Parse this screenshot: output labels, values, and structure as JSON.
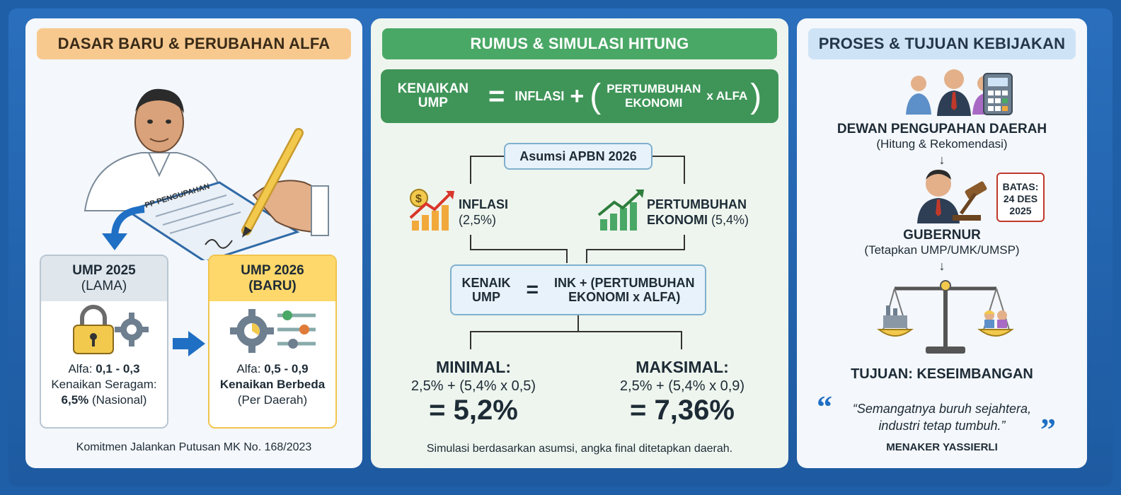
{
  "panel1": {
    "title": "DASAR BARU & PERUBAHAN ALFA",
    "document_label": "PP PENGUPAHAN",
    "old_card": {
      "title": "UMP 2025",
      "subtitle": "(LAMA)",
      "alfa_label": "Alfa: ",
      "alfa_value": "0,1 - 0,3",
      "increase_label": "Kenaikan Seragam:",
      "increase_value": "6,5%",
      "increase_note": " (Nasional)"
    },
    "new_card": {
      "title": "UMP 2026",
      "subtitle": "(BARU)",
      "alfa_label": "Alfa: ",
      "alfa_value": "0,5 - 0,9",
      "increase_label": "Kenaikan Berbeda",
      "increase_note": "(Per Daerah)"
    },
    "footer": "Komitmen Jalankan Putusan MK No. 168/2023"
  },
  "panel2": {
    "title": "RUMUS & SIMULASI HITUNG",
    "formula": {
      "lhs_line1": "KENAIKAN",
      "lhs_line2": "UMP",
      "equals": "=",
      "inflasi": "INFLASI",
      "plus": "+",
      "open": "(",
      "growth_line1": "PERTUMBUHAN",
      "growth_line2": "EKONOMI",
      "times_alfa": "x ALFA",
      "close": ")"
    },
    "assumption": "Asumsi APBN 2026",
    "inflasi_label": "INFLASI",
    "inflasi_value": "(2,5%)",
    "growth_label_line1": "PERTUMBUHAN",
    "growth_label_line2": "EKONOMI",
    "growth_value": "(5,4%)",
    "mid_formula": {
      "lhs_line1": "KENAIK",
      "lhs_line2": "UMP",
      "equals": "=",
      "rhs_line1": "INK + (PERTUMBUHAN",
      "rhs_line2": "EKONOMI x ALFA)"
    },
    "min": {
      "label": "MINIMAL:",
      "calc": "2,5% + (5,4% x 0,5)",
      "result": "= 5,2%"
    },
    "max": {
      "label": "MAKSIMAL:",
      "calc": "2,5% + (5,4% x 0,9)",
      "result": "= 7,36%"
    },
    "footer": "Simulasi berdasarkan asumsi, angka final ditetapkan daerah."
  },
  "panel3": {
    "title": "PROSES & TUJUAN KEBIJAKAN",
    "council_title": "DEWAN PENGUPAHAN DAERAH",
    "council_sub": "(Hitung & Rekomendasi)",
    "deadline_line1": "BATAS:",
    "deadline_line2": "24 DES",
    "deadline_line3": "2025",
    "governor_title": "GUBERNUR",
    "governor_sub": "(Tetapkan UMP/UMK/UMSP)",
    "goal": "TUJUAN: KESEIMBANGAN",
    "quote_line1": "“Semangatnya buruh sejahtera,",
    "quote_line2": "industri tetap tumbuh.”",
    "quote_author": "MENAKER YASSIERLI",
    "quote_open": "“",
    "quote_close": "”"
  },
  "colors": {
    "frame": "#1f5fa8",
    "panel1_header": "#f7c98f",
    "panel2_header": "#4aa866",
    "panel3_header": "#cfe3f6",
    "formula_bg": "#3f9558",
    "new_card_header": "#ffd86b",
    "arrow_blue": "#1f6fc4"
  }
}
